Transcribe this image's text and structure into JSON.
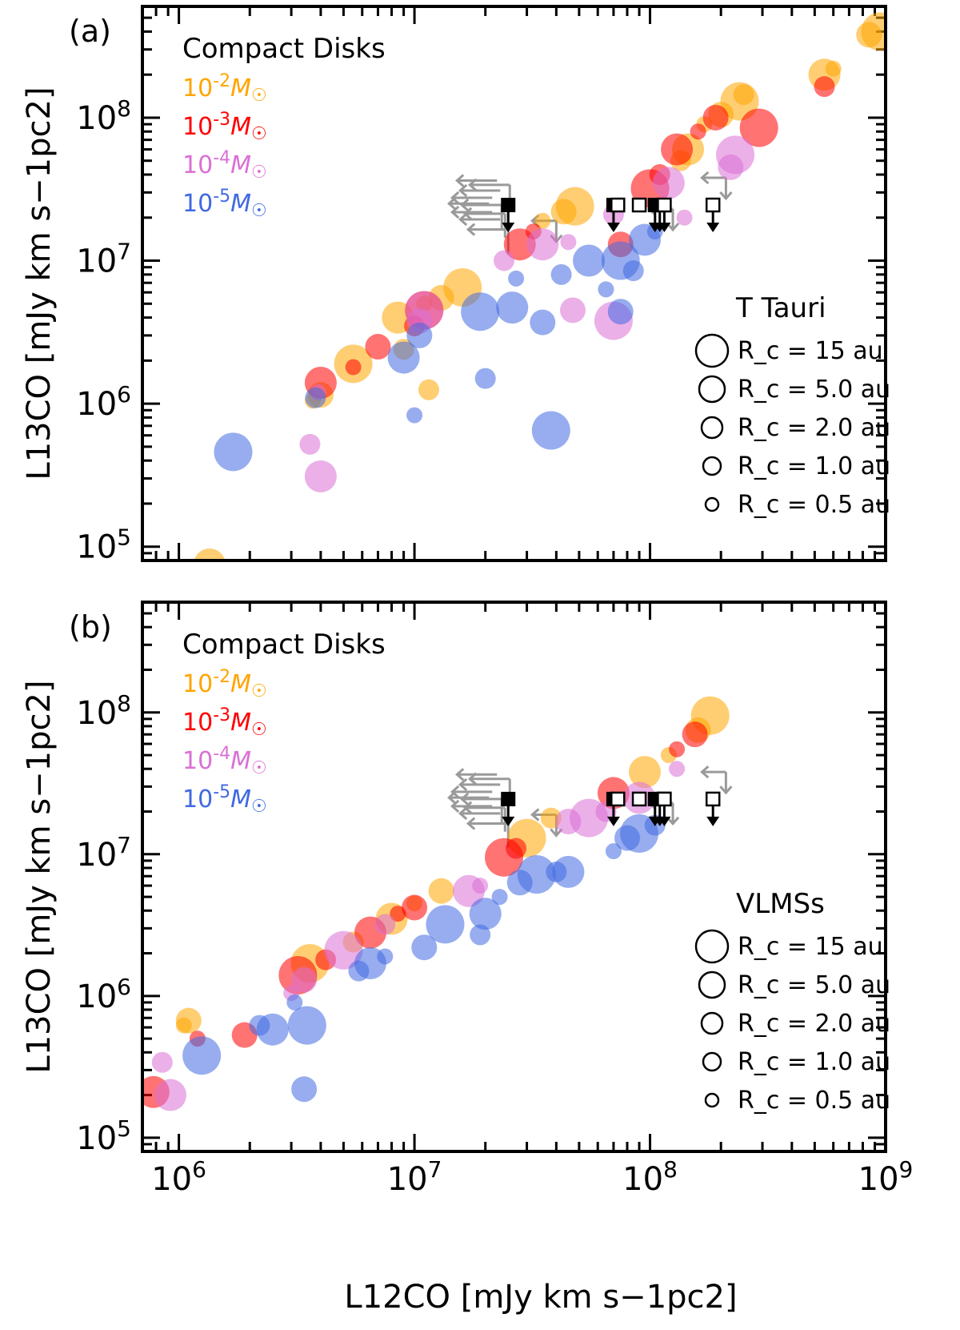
{
  "chart_data": [
    {
      "type": "scatter",
      "panel_label": "(a)",
      "title": "",
      "xlabel": "L12CO [mJy km s−1pc2]",
      "ylabel": "L13CO [mJy km s−1pc2]",
      "xscale": "log",
      "yscale": "log",
      "xlim": [
        700000,
        1000000000
      ],
      "ylim": [
        80000,
        600000000
      ],
      "x_tick_labels": [],
      "y_tick_labels": [
        "10^5",
        "10^6",
        "10^7",
        "10^8"
      ],
      "legend_title": "Compact Disks",
      "legend_placement": "top-left",
      "star_type": "T Tauri",
      "size_legend": [
        "R_c = 15 au",
        "R_c = 5.0 au",
        "R_c = 2.0 au",
        "R_c = 1.0 au",
        "R_c = 0.5 au"
      ],
      "series": [
        {
          "name": "10^-2 M☉",
          "color": "#ffa500",
          "points": [
            [
              3700000.0,
              1050000.0
            ],
            [
              4000000.0,
              1150000.0
            ],
            [
              5500000.0,
              1900000.0
            ],
            [
              9000000.0,
              2400000.0
            ],
            [
              8500000.0,
              4000000.0
            ],
            [
              11000000.0,
              5000000.0
            ],
            [
              13000000.0,
              5500000.0
            ],
            [
              16000000.0,
              6500000.0
            ],
            [
              11500000.0,
              1250000.0
            ],
            [
              1350000.0,
              75000.0
            ],
            [
              35000000.0,
              19000000.0
            ],
            [
              43000000.0,
              22000000.0
            ],
            [
              48000000.0,
              24000000.0
            ],
            [
              135000000.0,
              50000000.0
            ],
            [
              145000000.0,
              60000000.0
            ],
            [
              170000000.0,
              90000000.0
            ],
            [
              200000000.0,
              105000000.0
            ],
            [
              240000000.0,
              130000000.0
            ],
            [
              250000000.0,
              145000000.0
            ],
            [
              550000000.0,
              200000000.0
            ],
            [
              600000000.0,
              220000000.0
            ],
            [
              850000000.0,
              380000000.0
            ],
            [
              950000000.0,
              400000000.0
            ]
          ]
        },
        {
          "name": "10^-3 M☉",
          "color": "#ff0000",
          "points": [
            [
              4000000.0,
              1400000.0
            ],
            [
              5500000.0,
              1800000.0
            ],
            [
              7000000.0,
              2500000.0
            ],
            [
              11000000.0,
              4500000.0
            ],
            [
              10000000.0,
              3500000.0
            ],
            [
              28000000.0,
              13000000.0
            ],
            [
              32000000.0,
              16000000.0
            ],
            [
              75000000.0,
              13000000.0
            ],
            [
              100000000.0,
              32000000.0
            ],
            [
              110000000.0,
              40000000.0
            ],
            [
              130000000.0,
              60000000.0
            ],
            [
              160000000.0,
              80000000.0
            ],
            [
              190000000.0,
              100000000.0
            ],
            [
              290000000.0,
              85000000.0
            ],
            [
              550000000.0,
              165000000.0
            ]
          ]
        },
        {
          "name": "10^-4 M☉",
          "color": "#da70d6",
          "points": [
            [
              3600000.0,
              520000.0
            ],
            [
              4000000.0,
              310000.0
            ],
            [
              3900000.0,
              1200000.0
            ],
            [
              10500000.0,
              3800000.0
            ],
            [
              11000000.0,
              4500000.0
            ],
            [
              24000000.0,
              10000000.0
            ],
            [
              35000000.0,
              13000000.0
            ],
            [
              45000000.0,
              13500000.0
            ],
            [
              47000000.0,
              4500000.0
            ],
            [
              70000000.0,
              3800000.0
            ],
            [
              70000000.0,
              21000000.0
            ],
            [
              120000000.0,
              35000000.0
            ],
            [
              140000000.0,
              20000000.0
            ],
            [
              220000000.0,
              45000000.0
            ],
            [
              230000000.0,
              55000000.0
            ]
          ]
        },
        {
          "name": "10^-5 M☉",
          "color": "#4169e1",
          "points": [
            [
              1700000.0,
              460000.0
            ],
            [
              3800000.0,
              1100000.0
            ],
            [
              9000000.0,
              2100000.0
            ],
            [
              10000000.0,
              830000.0
            ],
            [
              10500000.0,
              3000000.0
            ],
            [
              19000000.0,
              4400000.0
            ],
            [
              20000000.0,
              1500000.0
            ],
            [
              26000000.0,
              4700000.0
            ],
            [
              27000000.0,
              7500000.0
            ],
            [
              35000000.0,
              3700000.0
            ],
            [
              38000000.0,
              650000.0
            ],
            [
              42000000.0,
              8000000.0
            ],
            [
              55000000.0,
              10000000.0
            ],
            [
              65000000.0,
              6300000.0
            ],
            [
              75000000.0,
              4400000.0
            ],
            [
              75000000.0,
              10000000.0
            ],
            [
              85000000.0,
              8500000.0
            ],
            [
              95000000.0,
              14000000.0
            ],
            [
              105000000.0,
              16000000.0
            ]
          ]
        }
      ],
      "upper_limits": {
        "filled_x": [
          25000000.0,
          70000000.0,
          105000000.0,
          110000000.0,
          115000000.0
        ],
        "open_x": [
          73000000.0,
          90000000.0,
          115000000.0,
          185000000.0
        ],
        "y": 24500000.0
      }
    },
    {
      "type": "scatter",
      "panel_label": "(b)",
      "title": "",
      "xlabel": "L12CO [mJy km s−1pc2]",
      "ylabel": "L13CO [mJy km s−1pc2]",
      "xscale": "log",
      "yscale": "log",
      "xlim": [
        700000,
        1000000000
      ],
      "ylim": [
        80000,
        600000000
      ],
      "x_tick_labels": [
        "10^6",
        "10^7",
        "10^8",
        "10^9"
      ],
      "y_tick_labels": [
        "10^5",
        "10^6",
        "10^7",
        "10^8"
      ],
      "legend_title": "Compact Disks",
      "legend_placement": "top-left",
      "star_type": "VLMSs",
      "size_legend": [
        "R_c = 15 au",
        "R_c = 5.0 au",
        "R_c = 2.0 au",
        "R_c = 1.0 au",
        "R_c = 0.5 au"
      ],
      "series": [
        {
          "name": "10^-2 M☉",
          "color": "#ffa500",
          "points": [
            [
              1050000.0,
              620000.0
            ],
            [
              1100000.0,
              670000.0
            ],
            [
              3600000.0,
              1700000.0
            ],
            [
              5500000.0,
              2400000.0
            ],
            [
              8000000.0,
              3500000.0
            ],
            [
              10000000.0,
              4500000.0
            ],
            [
              13000000.0,
              5500000.0
            ],
            [
              30000000.0,
              13000000.0
            ],
            [
              38000000.0,
              18000000.0
            ],
            [
              95000000.0,
              38000000.0
            ],
            [
              120000000.0,
              50000000.0
            ],
            [
              160000000.0,
              75000000.0
            ],
            [
              180000000.0,
              95000000.0
            ]
          ]
        },
        {
          "name": "10^-3 M☉",
          "color": "#ff0000",
          "points": [
            [
              780000.0,
              210000.0
            ],
            [
              1200000.0,
              500000.0
            ],
            [
              1900000.0,
              530000.0
            ],
            [
              3200000.0,
              1400000.0
            ],
            [
              4200000.0,
              1800000.0
            ],
            [
              6500000.0,
              2800000.0
            ],
            [
              8500000.0,
              3800000.0
            ],
            [
              10000000.0,
              4200000.0
            ],
            [
              24000000.0,
              9500000.0
            ],
            [
              27000000.0,
              11000000.0
            ],
            [
              70000000.0,
              27000000.0
            ],
            [
              130000000.0,
              55000000.0
            ],
            [
              155000000.0,
              70000000.0
            ]
          ]
        },
        {
          "name": "10^-4 M☉",
          "color": "#da70d6",
          "points": [
            [
              850000.0,
              340000.0
            ],
            [
              920000.0,
              200000.0
            ],
            [
              3000000.0,
              1050000.0
            ],
            [
              3400000.0,
              1300000.0
            ],
            [
              5000000.0,
              2100000.0
            ],
            [
              7500000.0,
              3200000.0
            ],
            [
              17000000.0,
              5500000.0
            ],
            [
              19000000.0,
              6000000.0
            ],
            [
              45000000.0,
              17000000.0
            ],
            [
              55000000.0,
              18000000.0
            ],
            [
              65000000.0,
              20000000.0
            ],
            [
              90000000.0,
              25000000.0
            ],
            [
              130000000.0,
              40000000.0
            ]
          ]
        },
        {
          "name": "10^-5 M☉",
          "color": "#4169e1",
          "points": [
            [
              1250000.0,
              380000.0
            ],
            [
              2200000.0,
              620000.0
            ],
            [
              2500000.0,
              580000.0
            ],
            [
              3100000.0,
              900000.0
            ],
            [
              3400000.0,
              220000.0
            ],
            [
              3500000.0,
              620000.0
            ],
            [
              5800000.0,
              1500000.0
            ],
            [
              6500000.0,
              1700000.0
            ],
            [
              7500000.0,
              1900000.0
            ],
            [
              11000000.0,
              2200000.0
            ],
            [
              13500000.0,
              3200000.0
            ],
            [
              19000000.0,
              2700000.0
            ],
            [
              20000000.0,
              3800000.0
            ],
            [
              23000000.0,
              5000000.0
            ],
            [
              28000000.0,
              6300000.0
            ],
            [
              33000000.0,
              7200000.0
            ],
            [
              40000000.0,
              7500000.0
            ],
            [
              45000000.0,
              7500000.0
            ],
            [
              70000000.0,
              10500000.0
            ],
            [
              80000000.0,
              13000000.0
            ],
            [
              90000000.0,
              14000000.0
            ],
            [
              105000000.0,
              16000000.0
            ]
          ]
        }
      ],
      "upper_limits": {
        "filled_x": [
          25000000.0,
          70000000.0,
          105000000.0,
          110000000.0,
          115000000.0
        ],
        "open_x": [
          73000000.0,
          90000000.0,
          115000000.0,
          185000000.0
        ],
        "y": 24500000.0
      }
    }
  ]
}
